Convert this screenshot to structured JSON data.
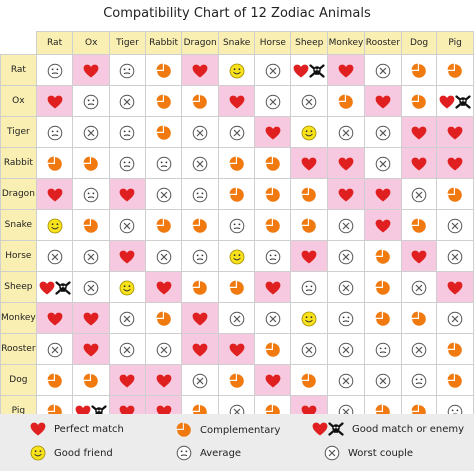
{
  "chart_data": {
    "type": "table",
    "title": "Compatibility Chart of 12 Zodiac Animals",
    "columns": [
      "Rat",
      "Ox",
      "Tiger",
      "Rabbit",
      "Dragon",
      "Snake",
      "Horse",
      "Sheep",
      "Monkey",
      "Rooster",
      "Dog",
      "Pig"
    ],
    "rows": [
      "Rat",
      "Ox",
      "Tiger",
      "Rabbit",
      "Dragon",
      "Snake",
      "Horse",
      "Sheep",
      "Monkey",
      "Rooster",
      "Dog",
      "Pig"
    ],
    "cells": [
      [
        "average",
        "perfect",
        "average",
        "complementary",
        "perfect",
        "friend",
        "worst",
        "good_or_enemy",
        "perfect",
        "worst",
        "complementary",
        "complementary"
      ],
      [
        "perfect",
        "average",
        "worst",
        "complementary",
        "complementary",
        "perfect",
        "worst",
        "worst",
        "complementary",
        "perfect",
        "complementary",
        "good_or_enemy"
      ],
      [
        "average",
        "worst",
        "average",
        "complementary",
        "worst",
        "worst",
        "perfect",
        "friend",
        "worst",
        "worst",
        "perfect",
        "perfect"
      ],
      [
        "complementary",
        "complementary",
        "average",
        "average",
        "worst",
        "complementary",
        "complementary",
        "perfect",
        "perfect",
        "worst",
        "perfect",
        "perfect"
      ],
      [
        "perfect",
        "average",
        "perfect",
        "worst",
        "average",
        "complementary",
        "complementary",
        "complementary",
        "perfect",
        "perfect",
        "worst",
        "complementary"
      ],
      [
        "friend",
        "complementary",
        "worst",
        "complementary",
        "complementary",
        "average",
        "complementary",
        "complementary",
        "worst",
        "perfect",
        "complementary",
        "worst"
      ],
      [
        "worst",
        "worst",
        "perfect",
        "worst",
        "average",
        "friend",
        "average",
        "perfect",
        "worst",
        "complementary",
        "perfect",
        "worst"
      ],
      [
        "good_or_enemy",
        "worst",
        "friend",
        "perfect",
        "complementary",
        "complementary",
        "perfect",
        "average",
        "worst",
        "complementary",
        "worst",
        "perfect"
      ],
      [
        "perfect",
        "perfect",
        "worst",
        "complementary",
        "perfect",
        "worst",
        "worst",
        "friend",
        "average",
        "complementary",
        "complementary",
        "worst"
      ],
      [
        "worst",
        "perfect",
        "worst",
        "worst",
        "perfect",
        "perfect",
        "complementary",
        "worst",
        "worst",
        "average",
        "worst",
        "complementary"
      ],
      [
        "complementary",
        "complementary",
        "perfect",
        "perfect",
        "worst",
        "complementary",
        "perfect",
        "complementary",
        "worst",
        "worst",
        "average",
        "complementary"
      ],
      [
        "complementary",
        "good_or_enemy",
        "perfect",
        "perfect",
        "complementary",
        "worst",
        "complementary",
        "perfect",
        "worst",
        "complementary",
        "complementary",
        "average"
      ]
    ],
    "legend": [
      {
        "key": "perfect",
        "label": "Perfect match"
      },
      {
        "key": "complementary",
        "label": "Complementary"
      },
      {
        "key": "good_or_enemy",
        "label": "Good match or enemy"
      },
      {
        "key": "friend",
        "label": "Good friend"
      },
      {
        "key": "average",
        "label": "Average"
      },
      {
        "key": "worst",
        "label": "Worst couple"
      }
    ],
    "colors": {
      "heart": "#e02020",
      "pie": "#f07a10",
      "smiley_fill": "#f8e21c",
      "header_bg": "#f9efb3",
      "perfect_bg": "#f7c9e0",
      "legend_bg": "#ececec"
    }
  }
}
